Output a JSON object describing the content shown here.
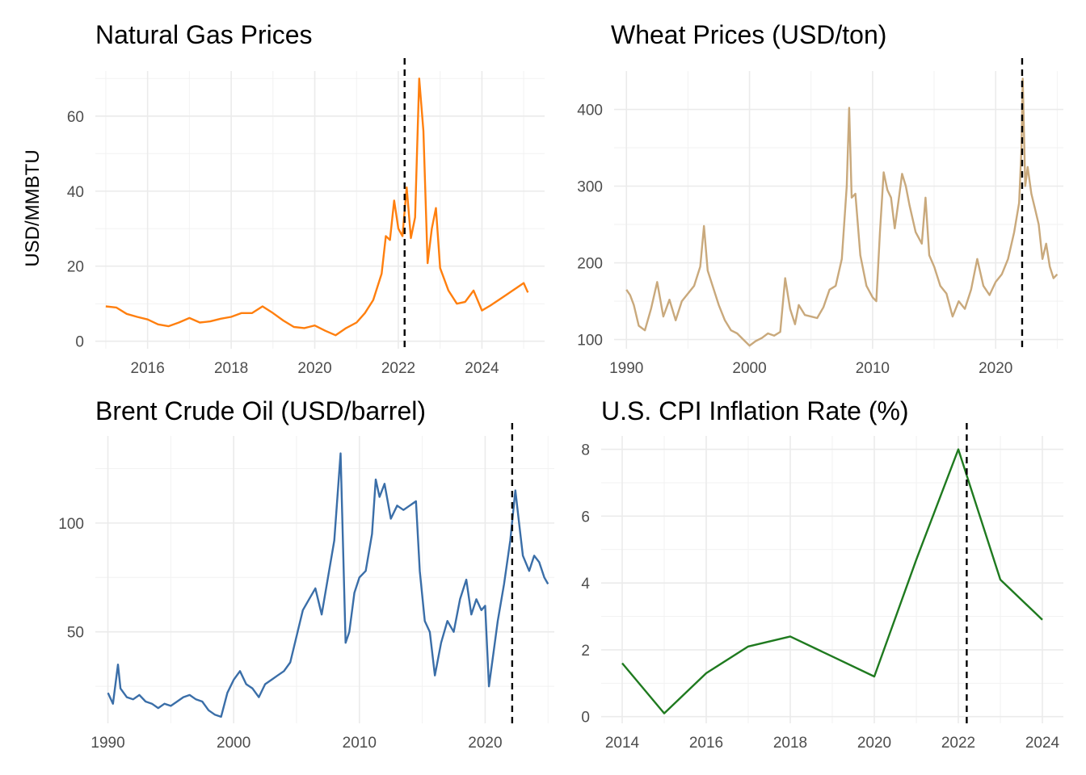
{
  "chart_data": [
    {
      "id": "gas",
      "type": "line",
      "title": "Natural Gas Prices",
      "ylabel": "USD/MMBTU",
      "xlim": [
        2014.75,
        2025.5
      ],
      "ylim": [
        -2,
        72
      ],
      "x_ticks": [
        2016,
        2018,
        2020,
        2022,
        2024
      ],
      "y_ticks": [
        0,
        20,
        40,
        60
      ],
      "vline": 2022.15,
      "color": "#ff7f0e",
      "series": [
        {
          "x": [
            2015.0,
            2015.25,
            2015.5,
            2015.75,
            2016.0,
            2016.25,
            2016.5,
            2016.75,
            2017.0,
            2017.25,
            2017.5,
            2017.75,
            2018.0,
            2018.25,
            2018.5,
            2018.75,
            2019.0,
            2019.25,
            2019.5,
            2019.75,
            2020.0,
            2020.25,
            2020.5,
            2020.75,
            2021.0,
            2021.2,
            2021.4,
            2021.6,
            2021.7,
            2021.8,
            2021.9,
            2022.0,
            2022.1,
            2022.2,
            2022.3,
            2022.4,
            2022.5,
            2022.6,
            2022.7,
            2022.8,
            2022.9,
            2023.0,
            2023.2,
            2023.4,
            2023.6,
            2023.8,
            2024.0,
            2024.2,
            2024.4,
            2024.6,
            2024.8,
            2025.0,
            2025.1
          ],
          "y": [
            9.3,
            9.0,
            7.3,
            6.5,
            5.8,
            4.5,
            4.0,
            5.0,
            6.2,
            5.0,
            5.3,
            6.0,
            6.5,
            7.5,
            7.5,
            9.3,
            7.5,
            5.5,
            3.8,
            3.5,
            4.2,
            2.8,
            1.6,
            3.5,
            5.0,
            7.5,
            11.0,
            18.0,
            28.0,
            27.0,
            37.5,
            30.0,
            28.0,
            41.0,
            27.5,
            33.0,
            70.0,
            56.0,
            20.8,
            30.0,
            35.5,
            19.5,
            13.5,
            10.0,
            10.5,
            13.5,
            8.2,
            9.5,
            11.0,
            12.5,
            14.0,
            15.5,
            13.0
          ]
        }
      ]
    },
    {
      "id": "wheat",
      "type": "line",
      "title": "Wheat Prices (USD/ton)",
      "xlim": [
        1989,
        2025.5
      ],
      "ylim": [
        88,
        450
      ],
      "x_ticks": [
        1990,
        2000,
        2010,
        2020
      ],
      "y_ticks": [
        100,
        200,
        300,
        400
      ],
      "vline": 2022.15,
      "color": "#c9a97c",
      "series": [
        {
          "x": [
            1990.0,
            1990.3,
            1990.6,
            1991.0,
            1991.5,
            1992.0,
            1992.5,
            1993.0,
            1993.5,
            1994.0,
            1994.5,
            1995.0,
            1995.5,
            1996.0,
            1996.3,
            1996.6,
            1997.0,
            1997.5,
            1998.0,
            1998.5,
            1999.0,
            1999.5,
            2000.0,
            2000.5,
            2001.0,
            2001.5,
            2002.0,
            2002.5,
            2002.9,
            2003.3,
            2003.7,
            2004.0,
            2004.5,
            2005.0,
            2005.5,
            2006.0,
            2006.5,
            2007.0,
            2007.5,
            2007.9,
            2008.1,
            2008.3,
            2008.6,
            2009.0,
            2009.5,
            2010.0,
            2010.3,
            2010.6,
            2010.9,
            2011.2,
            2011.5,
            2011.8,
            2012.1,
            2012.4,
            2012.7,
            2013.0,
            2013.5,
            2014.0,
            2014.3,
            2014.6,
            2015.0,
            2015.5,
            2016.0,
            2016.5,
            2017.0,
            2017.5,
            2018.0,
            2018.5,
            2019.0,
            2019.5,
            2020.0,
            2020.5,
            2021.0,
            2021.5,
            2021.9,
            2022.1,
            2022.2,
            2022.4,
            2022.6,
            2022.9,
            2023.2,
            2023.5,
            2023.8,
            2024.1,
            2024.4,
            2024.7,
            2025.0
          ],
          "y": [
            165,
            158,
            145,
            118,
            112,
            140,
            175,
            130,
            152,
            125,
            150,
            160,
            170,
            195,
            248,
            190,
            170,
            145,
            125,
            112,
            108,
            100,
            92,
            98,
            102,
            108,
            105,
            110,
            180,
            140,
            120,
            145,
            132,
            130,
            128,
            142,
            165,
            170,
            205,
            300,
            402,
            285,
            290,
            210,
            170,
            155,
            150,
            240,
            318,
            295,
            285,
            245,
            280,
            316,
            300,
            275,
            240,
            225,
            285,
            210,
            195,
            170,
            160,
            130,
            150,
            140,
            165,
            205,
            170,
            158,
            175,
            185,
            205,
            240,
            278,
            350,
            440,
            300,
            325,
            290,
            270,
            250,
            205,
            225,
            195,
            180,
            185
          ]
        }
      ]
    },
    {
      "id": "brent",
      "type": "line",
      "title": "Brent Crude Oil (USD/barrel)",
      "xlim": [
        1989,
        2025.5
      ],
      "ylim": [
        8,
        140
      ],
      "x_ticks": [
        1990,
        2000,
        2010,
        2020
      ],
      "y_ticks": [
        50,
        100
      ],
      "vline": 2022.15,
      "color": "#3a6ea8",
      "series": [
        {
          "x": [
            1990.0,
            1990.4,
            1990.8,
            1991.0,
            1991.5,
            1992.0,
            1992.5,
            1993.0,
            1993.5,
            1994.0,
            1994.5,
            1995.0,
            1995.5,
            1996.0,
            1996.5,
            1997.0,
            1997.5,
            1998.0,
            1998.5,
            1999.0,
            1999.5,
            2000.0,
            2000.5,
            2001.0,
            2001.5,
            2002.0,
            2002.5,
            2003.0,
            2003.5,
            2004.0,
            2004.5,
            2005.0,
            2005.5,
            2006.0,
            2006.5,
            2007.0,
            2007.5,
            2008.0,
            2008.5,
            2008.9,
            2009.2,
            2009.6,
            2010.0,
            2010.5,
            2011.0,
            2011.3,
            2011.6,
            2012.0,
            2012.5,
            2013.0,
            2013.5,
            2014.0,
            2014.5,
            2014.8,
            2015.2,
            2015.6,
            2016.0,
            2016.5,
            2017.0,
            2017.5,
            2018.0,
            2018.5,
            2018.9,
            2019.3,
            2019.7,
            2020.0,
            2020.3,
            2020.7,
            2021.0,
            2021.5,
            2022.0,
            2022.4,
            2022.7,
            2023.0,
            2023.5,
            2023.9,
            2024.3,
            2024.7,
            2025.0
          ],
          "y": [
            22,
            17,
            35,
            24,
            20,
            19,
            21,
            18,
            17,
            15,
            17,
            16,
            18,
            20,
            21,
            19,
            18,
            14,
            12,
            11,
            22,
            28,
            32,
            26,
            24,
            20,
            26,
            28,
            30,
            32,
            36,
            48,
            60,
            65,
            70,
            58,
            75,
            92,
            132,
            45,
            50,
            68,
            75,
            78,
            95,
            120,
            112,
            118,
            102,
            108,
            106,
            108,
            110,
            78,
            55,
            50,
            30,
            45,
            55,
            50,
            65,
            74,
            58,
            65,
            60,
            62,
            25,
            42,
            55,
            72,
            92,
            115,
            100,
            85,
            78,
            85,
            82,
            75,
            72
          ]
        }
      ]
    },
    {
      "id": "cpi",
      "type": "line",
      "title": "U.S. CPI Inflation Rate (%)",
      "xlim": [
        2013.5,
        2024.5
      ],
      "ylim": [
        -0.2,
        8.4
      ],
      "x_ticks": [
        2014,
        2016,
        2018,
        2020,
        2022,
        2024
      ],
      "y_ticks": [
        0,
        2,
        4,
        6,
        8
      ],
      "vline": 2022.2,
      "color": "#1f7a1f",
      "series": [
        {
          "x": [
            2014,
            2015,
            2016,
            2017,
            2018,
            2019,
            2020,
            2021,
            2022,
            2023,
            2024
          ],
          "y": [
            1.6,
            0.1,
            1.3,
            2.1,
            2.4,
            1.8,
            1.2,
            4.7,
            8.0,
            4.1,
            2.9
          ]
        }
      ]
    }
  ]
}
